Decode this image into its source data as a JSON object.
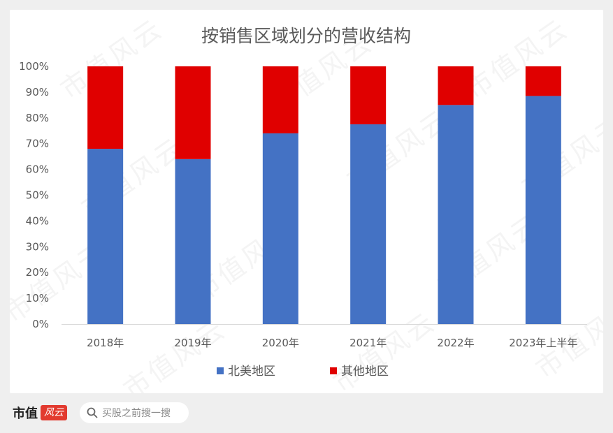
{
  "chart_data": {
    "type": "bar",
    "stacked": true,
    "title": "按销售区域划分的营收结构",
    "categories": [
      "2018年",
      "2019年",
      "2020年",
      "2021年",
      "2022年",
      "2023年上半年"
    ],
    "series": [
      {
        "name": "北美地区",
        "color": "#4472c4",
        "values": [
          68,
          64,
          74,
          77.5,
          85,
          88.5
        ]
      },
      {
        "name": "其他地区",
        "color": "#e00000",
        "values": [
          32,
          36,
          26,
          22.5,
          15,
          11.5
        ]
      }
    ],
    "ylim": [
      0,
      100
    ],
    "yticks": [
      "0%",
      "10%",
      "20%",
      "30%",
      "40%",
      "50%",
      "60%",
      "70%",
      "80%",
      "90%",
      "100%"
    ],
    "xlabel": "",
    "ylabel": "",
    "grid": false,
    "legend_position": "bottom"
  },
  "footer": {
    "brand": "市值",
    "brand_badge": "风云",
    "search_placeholder": "买股之前搜一搜",
    "search_icon": "search-icon"
  },
  "watermark": {
    "text": "市值风云"
  }
}
